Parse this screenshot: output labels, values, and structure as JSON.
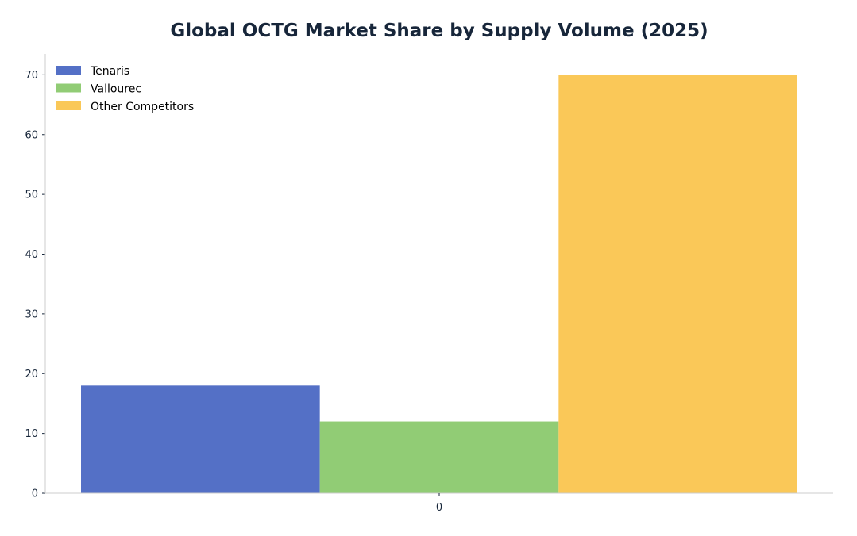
{
  "chart_data": {
    "type": "bar",
    "title": "Global OCTG Market Share by Supply Volume (2025)",
    "xlabel": "",
    "ylabel": "",
    "categories": [
      "0"
    ],
    "series": [
      {
        "name": "Tenaris",
        "values": [
          18
        ],
        "color": "#5470c6"
      },
      {
        "name": "Vallourec",
        "values": [
          12
        ],
        "color": "#91cc75"
      },
      {
        "name": "Other Competitors",
        "values": [
          70
        ],
        "color": "#fac858"
      }
    ],
    "ylim": [
      0,
      73.5
    ],
    "yticks": [
      0,
      10,
      20,
      30,
      40,
      50,
      60,
      70
    ],
    "grid": false,
    "legend_position": "top-left"
  }
}
